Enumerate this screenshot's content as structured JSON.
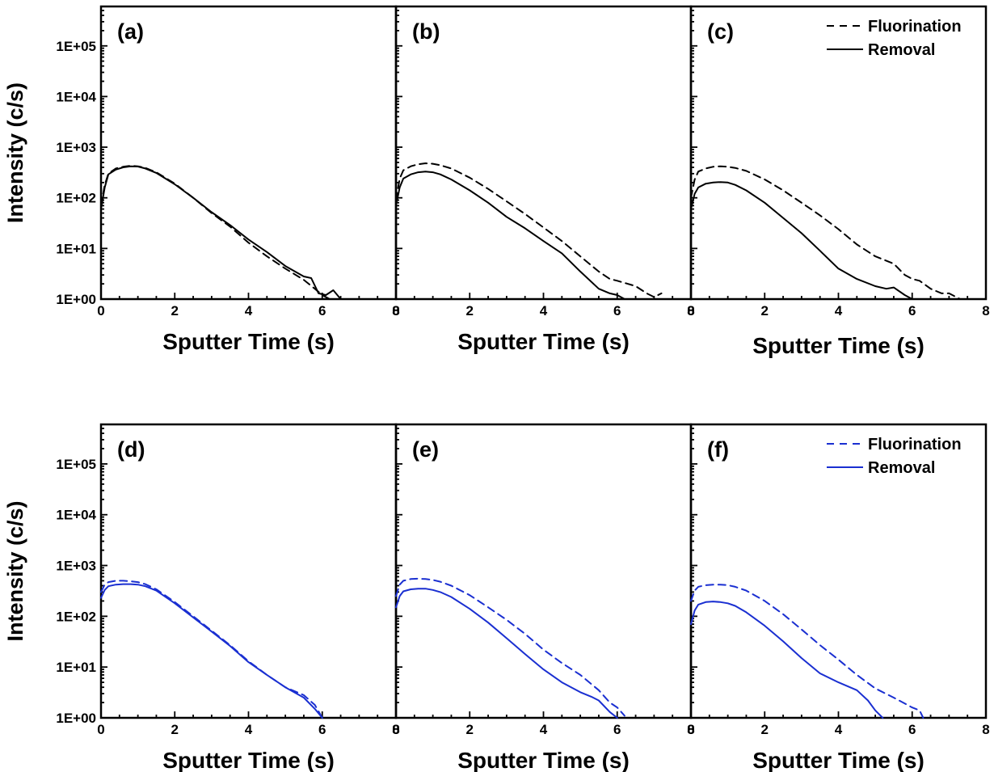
{
  "figure": {
    "rows": [
      {
        "color": "#000000",
        "ylabel": "Intensity (c/s)",
        "panels": [
          {
            "label": "(a)",
            "xlabel": "Sputter Time (s)",
            "series": [
              {
                "name": "Fluorination",
                "style": "dashed",
                "x": [
                  0.0,
                  0.1,
                  0.2,
                  0.4,
                  0.6,
                  0.8,
                  1.0,
                  1.2,
                  1.5,
                  2.0,
                  2.5,
                  3.0,
                  3.5,
                  4.0,
                  4.5,
                  5.0,
                  5.5,
                  5.8,
                  6.0,
                  6.2
                ],
                "y": [
                  70,
                  180,
                  300,
                  380,
                  410,
                  430,
                  420,
                  390,
                  320,
                  190,
                  100,
                  50,
                  27,
                  13,
                  7,
                  4,
                  2.4,
                  1.6,
                  1.2,
                  1.0
                ]
              },
              {
                "name": "Removal",
                "style": "solid",
                "x": [
                  0.0,
                  0.1,
                  0.2,
                  0.4,
                  0.6,
                  0.8,
                  1.0,
                  1.2,
                  1.5,
                  2.0,
                  2.5,
                  3.0,
                  3.5,
                  4.0,
                  4.5,
                  5.0,
                  5.5,
                  5.7,
                  5.9,
                  6.1,
                  6.3,
                  6.5
                ],
                "y": [
                  60,
                  160,
                  290,
                  360,
                  400,
                  420,
                  415,
                  380,
                  310,
                  185,
                  100,
                  52,
                  29,
                  15,
                  8.5,
                  4.5,
                  2.8,
                  2.6,
                  1.3,
                  1.2,
                  1.5,
                  1.0
                ]
              }
            ]
          },
          {
            "label": "(b)",
            "xlabel": "Sputter Time (s)",
            "series": [
              {
                "name": "Fluorination",
                "style": "dashed",
                "x": [
                  0.0,
                  0.1,
                  0.2,
                  0.4,
                  0.6,
                  0.8,
                  1.0,
                  1.2,
                  1.5,
                  2.0,
                  2.5,
                  3.0,
                  3.5,
                  4.0,
                  4.5,
                  5.0,
                  5.5,
                  5.8,
                  6.0,
                  6.5,
                  6.8,
                  7.0,
                  7.2
                ],
                "y": [
                  90,
                  240,
                  350,
                  420,
                  460,
                  480,
                  470,
                  440,
                  380,
                  250,
                  150,
                  85,
                  48,
                  26,
                  14,
                  7,
                  3.5,
                  2.5,
                  2.3,
                  1.8,
                  1.3,
                  1.1,
                  1.3
                ]
              },
              {
                "name": "Removal",
                "style": "solid",
                "x": [
                  0.0,
                  0.1,
                  0.2,
                  0.4,
                  0.6,
                  0.8,
                  1.0,
                  1.2,
                  1.5,
                  2.0,
                  2.5,
                  3.0,
                  3.5,
                  4.0,
                  4.5,
                  5.0,
                  5.5,
                  5.8,
                  6.0,
                  6.2
                ],
                "y": [
                  70,
                  160,
                  240,
                  290,
                  320,
                  330,
                  320,
                  290,
                  230,
                  140,
                  80,
                  42,
                  25,
                  14,
                  8,
                  3.5,
                  1.6,
                  1.3,
                  1.2,
                  1.0
                ]
              }
            ]
          },
          {
            "label": "(c)",
            "xlabel": "Sputter Time (s)",
            "series": [
              {
                "name": "Fluorination",
                "style": "dashed",
                "x": [
                  0.0,
                  0.1,
                  0.2,
                  0.4,
                  0.6,
                  0.8,
                  1.0,
                  1.2,
                  1.5,
                  2.0,
                  2.5,
                  3.0,
                  3.5,
                  4.0,
                  4.5,
                  5.0,
                  5.5,
                  5.8,
                  6.0,
                  6.2,
                  6.5,
                  6.8,
                  7.0,
                  7.3
                ],
                "y": [
                  100,
                  230,
                  330,
                  380,
                  410,
                  420,
                  410,
                  390,
                  340,
                  230,
                  140,
                  80,
                  45,
                  24,
                  12,
                  7,
                  5,
                  3,
                  2.5,
                  2.3,
                  1.6,
                  1.3,
                  1.3,
                  1.0
                ]
              },
              {
                "name": "Removal",
                "style": "solid",
                "x": [
                  0.0,
                  0.1,
                  0.2,
                  0.4,
                  0.6,
                  0.8,
                  1.0,
                  1.2,
                  1.5,
                  2.0,
                  2.5,
                  3.0,
                  3.5,
                  4.0,
                  4.5,
                  5.0,
                  5.3,
                  5.5,
                  5.8,
                  6.0
                ],
                "y": [
                  60,
                  120,
                  160,
                  190,
                  200,
                  205,
                  200,
                  180,
                  140,
                  80,
                  40,
                  20,
                  9,
                  4,
                  2.5,
                  1.8,
                  1.6,
                  1.7,
                  1.2,
                  1.0
                ]
              }
            ]
          }
        ]
      },
      {
        "color": "#1a2fd1",
        "ylabel": "Intensity (c/s)",
        "panels": [
          {
            "label": "(d)",
            "xlabel": "Sputter Time (s)",
            "series": [
              {
                "name": "Fluorination",
                "style": "dashed",
                "x": [
                  0.0,
                  0.1,
                  0.2,
                  0.4,
                  0.6,
                  0.8,
                  1.0,
                  1.2,
                  1.5,
                  2.0,
                  2.5,
                  3.0,
                  3.5,
                  4.0,
                  4.5,
                  5.0,
                  5.5,
                  5.8,
                  6.0
                ],
                "y": [
                  300,
                  420,
                  470,
                  500,
                  500,
                  490,
                  470,
                  430,
                  340,
                  190,
                  100,
                  52,
                  27,
                  13,
                  7,
                  4,
                  2.8,
                  1.8,
                  1.0
                ]
              },
              {
                "name": "Removal",
                "style": "solid",
                "x": [
                  0.0,
                  0.1,
                  0.2,
                  0.4,
                  0.6,
                  0.8,
                  1.0,
                  1.2,
                  1.5,
                  2.0,
                  2.5,
                  3.0,
                  3.5,
                  4.0,
                  4.5,
                  5.0,
                  5.5,
                  5.8,
                  6.0
                ],
                "y": [
                  230,
                  330,
                  390,
                  420,
                  430,
                  430,
                  420,
                  390,
                  320,
                  180,
                  95,
                  50,
                  26,
                  12.5,
                  7,
                  4,
                  2.5,
                  1.5,
                  1.0
                ]
              }
            ]
          },
          {
            "label": "(e)",
            "xlabel": "Sputter Time (s)",
            "series": [
              {
                "name": "Fluorination",
                "style": "dashed",
                "x": [
                  0.0,
                  0.1,
                  0.2,
                  0.4,
                  0.6,
                  0.8,
                  1.0,
                  1.2,
                  1.5,
                  2.0,
                  2.5,
                  3.0,
                  3.5,
                  4.0,
                  4.5,
                  5.0,
                  5.5,
                  5.8,
                  6.0,
                  6.2
                ],
                "y": [
                  250,
                  420,
                  500,
                  540,
                  550,
                  540,
                  520,
                  480,
                  400,
                  260,
                  150,
                  85,
                  45,
                  22,
                  12,
                  7,
                  3.5,
                  2,
                  1.6,
                  1.1
                ]
              },
              {
                "name": "Removal",
                "style": "solid",
                "x": [
                  0.0,
                  0.1,
                  0.2,
                  0.4,
                  0.6,
                  0.8,
                  1.0,
                  1.2,
                  1.5,
                  2.0,
                  2.5,
                  3.0,
                  3.5,
                  4.0,
                  4.5,
                  5.0,
                  5.3,
                  5.5,
                  5.8,
                  6.0
                ],
                "y": [
                  150,
                  250,
                  310,
                  340,
                  350,
                  350,
                  330,
                  300,
                  240,
                  140,
                  75,
                  37,
                  18,
                  9,
                  5,
                  3.2,
                  2.6,
                  2.2,
                  1.3,
                  1.0
                ]
              }
            ]
          },
          {
            "label": "(f)",
            "xlabel": "Sputter Time (s)",
            "series": [
              {
                "name": "Fluorination",
                "style": "dashed",
                "x": [
                  0.0,
                  0.1,
                  0.2,
                  0.4,
                  0.6,
                  0.8,
                  1.0,
                  1.2,
                  1.5,
                  2.0,
                  2.5,
                  3.0,
                  3.5,
                  4.0,
                  4.5,
                  5.0,
                  5.5,
                  6.0,
                  6.2,
                  6.3
                ],
                "y": [
                  200,
                  320,
                  380,
                  410,
                  420,
                  420,
                  410,
                  380,
                  320,
                  200,
                  110,
                  55,
                  27,
                  14,
                  7,
                  3.8,
                  2.5,
                  1.6,
                  1.4,
                  1.0
                ]
              },
              {
                "name": "Removal",
                "style": "solid",
                "x": [
                  0.0,
                  0.1,
                  0.2,
                  0.4,
                  0.6,
                  0.8,
                  1.0,
                  1.2,
                  1.5,
                  2.0,
                  2.5,
                  3.0,
                  3.5,
                  4.0,
                  4.5,
                  4.8,
                  5.0,
                  5.2
                ],
                "y": [
                  70,
                  130,
                  170,
                  190,
                  195,
                  190,
                  180,
                  160,
                  120,
                  65,
                  32,
                  15,
                  7.5,
                  5,
                  3.5,
                  2.2,
                  1.4,
                  1.0
                ]
              }
            ]
          }
        ]
      }
    ],
    "legend": {
      "entries": [
        {
          "label": "Fluorination",
          "style": "dashed"
        },
        {
          "label": "Removal",
          "style": "solid"
        }
      ]
    }
  },
  "chart_data": {
    "type": "line",
    "layout": "2 rows x 3 panels, shared y axis per row",
    "xlim": [
      0,
      8
    ],
    "xticks": [
      0,
      2,
      4,
      6,
      8
    ],
    "ylim": [
      1,
      600000
    ],
    "yscale": "log",
    "yticks": [
      1,
      10,
      100,
      1000,
      10000,
      100000
    ],
    "ytick_labels": [
      "1E+00",
      "1E+01",
      "1E+02",
      "1E+03",
      "1E+04",
      "1E+05"
    ],
    "xlabel": "Sputter Time (s)",
    "ylabel": "Intensity (c/s)",
    "grid": false,
    "legend_placement": "top-right of panels (c) and (f)",
    "series_colors": {
      "top_row": "#000000",
      "bottom_row": "#1a2fd1"
    }
  }
}
